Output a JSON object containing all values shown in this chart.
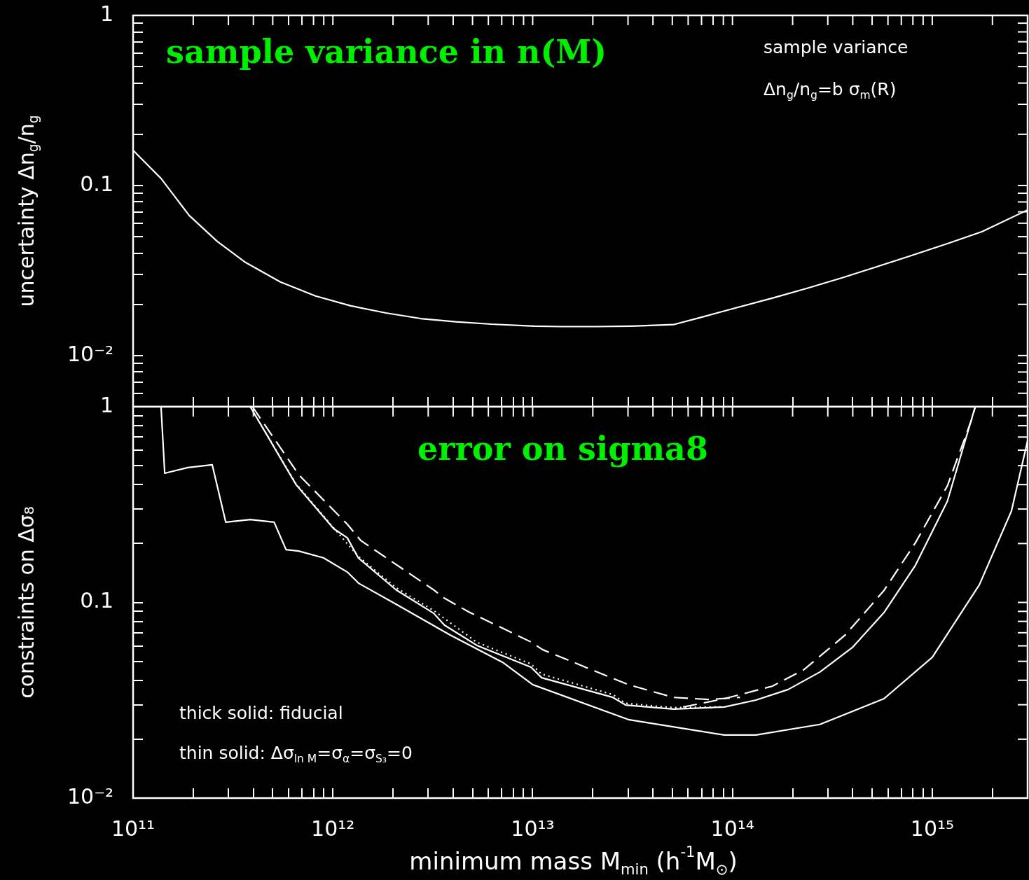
{
  "chart_data": [
    {
      "type": "line",
      "title": "sample variance in n(M)",
      "ylabel": "uncertainty Δn$_{g}$/n$_{g}$",
      "log": "xy",
      "grid": false,
      "legend": false,
      "marker": "none",
      "tick_labels": "y",
      "annotations": [
        "sample variance",
        "Δn$_{g}$/n$_{g}$=b σ$_{m}$(R)"
      ],
      "xlim": [
        100000000000.0,
        3000000000000000.0
      ],
      "ylim": [
        0.005,
        1
      ],
      "xticks": [
        {
          "value": 100000000000.0,
          "label": null
        },
        {
          "value": 200000000000.0,
          "label": null
        },
        {
          "value": 300000000000.0,
          "label": null
        },
        {
          "value": 400000000000.0,
          "label": null
        },
        {
          "value": 500000000000.0,
          "label": null
        },
        {
          "value": 600000000000.0,
          "label": null
        },
        {
          "value": 700000000000.0,
          "label": null
        },
        {
          "value": 800000000000.0,
          "label": null
        },
        {
          "value": 900000000000.0,
          "label": null
        },
        {
          "value": 1000000000000.0,
          "label": null
        },
        {
          "value": 2000000000000.0,
          "label": null
        },
        {
          "value": 3000000000000.0,
          "label": null
        },
        {
          "value": 4000000000000.0,
          "label": null
        },
        {
          "value": 5000000000000.0,
          "label": null
        },
        {
          "value": 6000000000000.0,
          "label": null
        },
        {
          "value": 7000000000000.0,
          "label": null
        },
        {
          "value": 8000000000000.0,
          "label": null
        },
        {
          "value": 9000000000000.0,
          "label": null
        },
        {
          "value": 10000000000000.0,
          "label": null
        },
        {
          "value": 20000000000000.0,
          "label": null
        },
        {
          "value": 30000000000000.0,
          "label": null
        },
        {
          "value": 40000000000000.0,
          "label": null
        },
        {
          "value": 50000000000000.0,
          "label": null
        },
        {
          "value": 60000000000000.0,
          "label": null
        },
        {
          "value": 70000000000000.0,
          "label": null
        },
        {
          "value": 80000000000000.0,
          "label": null
        },
        {
          "value": 90000000000000.0,
          "label": null
        },
        {
          "value": 100000000000000.0,
          "label": null
        },
        {
          "value": 200000000000000.0,
          "label": null
        },
        {
          "value": 300000000000000.0,
          "label": null
        },
        {
          "value": 400000000000000.0,
          "label": null
        },
        {
          "value": 500000000000000.0,
          "label": null
        },
        {
          "value": 600000000000000.0,
          "label": null
        },
        {
          "value": 700000000000000.0,
          "label": null
        },
        {
          "value": 800000000000000.0,
          "label": null
        },
        {
          "value": 900000000000000.0,
          "label": null
        },
        {
          "value": 1000000000000000.0,
          "label": null
        },
        {
          "value": 2000000000000000.0,
          "label": null
        }
      ],
      "yticks": [
        {
          "value": 0.006,
          "label": null
        },
        {
          "value": 0.007,
          "label": null
        },
        {
          "value": 0.008,
          "label": null
        },
        {
          "value": 0.009,
          "label": null
        },
        {
          "value": 0.01,
          "label": "10⁻²"
        },
        {
          "value": 0.02,
          "label": null
        },
        {
          "value": 0.03,
          "label": null
        },
        {
          "value": 0.04,
          "label": null
        },
        {
          "value": 0.05,
          "label": null
        },
        {
          "value": 0.06,
          "label": null
        },
        {
          "value": 0.07,
          "label": null
        },
        {
          "value": 0.08,
          "label": null
        },
        {
          "value": 0.09,
          "label": null
        },
        {
          "value": 0.1,
          "label": "0.1"
        },
        {
          "value": 0.2,
          "label": null
        },
        {
          "value": 0.3,
          "label": null
        },
        {
          "value": 0.4,
          "label": null
        },
        {
          "value": 0.5,
          "label": null
        },
        {
          "value": 0.6,
          "label": null
        },
        {
          "value": 0.7,
          "label": null
        },
        {
          "value": 0.8,
          "label": null
        },
        {
          "value": 0.9,
          "label": null
        },
        {
          "value": 1,
          "label": "1"
        }
      ],
      "series": [
        {
          "color": "#ffffff",
          "line_style": "solid",
          "x": [
            100000000000.0,
            138000000000.0,
            191000000000.0,
            264000000000.0,
            365000000000.0,
            546000000000.0,
            818000000000.0,
            1230000000000.0,
            1840000000000.0,
            2750000000000.0,
            4120000000000.0,
            6180000000000.0,
            10200000000000.0,
            13900000000000.0,
            20800000000000.0,
            31100000000000.0,
            50600000000000.0,
            70000000000000.0,
            101000000000000.0,
            157000000000000.0,
            235000000000000.0,
            352000000000000.0,
            528000000000000.0,
            791000000000000.0,
            1190000000000000.0,
            1770000000000000.0,
            3000000000000000.0
          ],
          "values": [
            0.161,
            0.11,
            0.0666,
            0.0469,
            0.0353,
            0.0271,
            0.0224,
            0.0196,
            0.0178,
            0.0165,
            0.0158,
            0.0153,
            0.0149,
            0.0148,
            0.0148,
            0.0149,
            0.0152,
            0.0168,
            0.0189,
            0.0217,
            0.0248,
            0.0286,
            0.0333,
            0.0388,
            0.0455,
            0.0535,
            0.0718
          ]
        }
      ]
    },
    {
      "type": "line",
      "title": "error on sigma8",
      "xlabel": "minimum mass M$_{min}$ (h$^{-1}$M$_{⊙}$)",
      "ylabel": "constraints on Δσ₈",
      "log": "xy",
      "grid": false,
      "legend": false,
      "marker": "none",
      "annotations": [
        "thick solid: fiducial",
        "thin solid: Δσ$_{ln M}$=σ$_{α}$=σ$_{S₃}$=0"
      ],
      "xlim": [
        100000000000.0,
        3000000000000000.0
      ],
      "ylim": [
        0.01,
        1
      ],
      "xticks": [
        {
          "value": 100000000000.0,
          "label": "10¹¹"
        },
        {
          "value": 200000000000.0,
          "label": null
        },
        {
          "value": 300000000000.0,
          "label": null
        },
        {
          "value": 400000000000.0,
          "label": null
        },
        {
          "value": 500000000000.0,
          "label": null
        },
        {
          "value": 600000000000.0,
          "label": null
        },
        {
          "value": 700000000000.0,
          "label": null
        },
        {
          "value": 800000000000.0,
          "label": null
        },
        {
          "value": 900000000000.0,
          "label": null
        },
        {
          "value": 1000000000000.0,
          "label": "10¹²"
        },
        {
          "value": 2000000000000.0,
          "label": null
        },
        {
          "value": 3000000000000.0,
          "label": null
        },
        {
          "value": 4000000000000.0,
          "label": null
        },
        {
          "value": 5000000000000.0,
          "label": null
        },
        {
          "value": 6000000000000.0,
          "label": null
        },
        {
          "value": 7000000000000.0,
          "label": null
        },
        {
          "value": 8000000000000.0,
          "label": null
        },
        {
          "value": 9000000000000.0,
          "label": null
        },
        {
          "value": 10000000000000.0,
          "label": "10¹³"
        },
        {
          "value": 20000000000000.0,
          "label": null
        },
        {
          "value": 30000000000000.0,
          "label": null
        },
        {
          "value": 40000000000000.0,
          "label": null
        },
        {
          "value": 50000000000000.0,
          "label": null
        },
        {
          "value": 60000000000000.0,
          "label": null
        },
        {
          "value": 70000000000000.0,
          "label": null
        },
        {
          "value": 80000000000000.0,
          "label": null
        },
        {
          "value": 90000000000000.0,
          "label": null
        },
        {
          "value": 100000000000000.0,
          "label": "10¹⁴"
        },
        {
          "value": 200000000000000.0,
          "label": null
        },
        {
          "value": 300000000000000.0,
          "label": null
        },
        {
          "value": 400000000000000.0,
          "label": null
        },
        {
          "value": 500000000000000.0,
          "label": null
        },
        {
          "value": 600000000000000.0,
          "label": null
        },
        {
          "value": 700000000000000.0,
          "label": null
        },
        {
          "value": 800000000000000.0,
          "label": null
        },
        {
          "value": 900000000000000.0,
          "label": null
        },
        {
          "value": 1000000000000000.0,
          "label": "10¹⁵"
        },
        {
          "value": 2000000000000000.0,
          "label": null
        }
      ],
      "yticks": [
        {
          "value": 0.01,
          "label": "10⁻²"
        },
        {
          "value": 0.02,
          "label": null
        },
        {
          "value": 0.03,
          "label": null
        },
        {
          "value": 0.04,
          "label": null
        },
        {
          "value": 0.05,
          "label": null
        },
        {
          "value": 0.06,
          "label": null
        },
        {
          "value": 0.07,
          "label": null
        },
        {
          "value": 0.08,
          "label": null
        },
        {
          "value": 0.09,
          "label": null
        },
        {
          "value": 0.1,
          "label": "0.1"
        },
        {
          "value": 0.2,
          "label": null
        },
        {
          "value": 0.3,
          "label": null
        },
        {
          "value": 0.4,
          "label": null
        },
        {
          "value": 0.5,
          "label": null
        },
        {
          "value": 0.6,
          "label": null
        },
        {
          "value": 0.7,
          "label": null
        },
        {
          "value": 0.8,
          "label": null
        },
        {
          "value": 0.9,
          "label": null
        },
        {
          "value": 1,
          "label": "1"
        }
      ],
      "series": [
        {
          "color": "#ffffff",
          "line_style": "solid",
          "x": [
            138000000000.0,
            144000000000.0,
            188000000000.0,
            249000000000.0,
            291000000000.0,
            386000000000.0,
            508000000000.0,
            583000000000.0,
            674000000000.0,
            896000000000.0,
            1180000000000.0,
            1350000000000.0,
            2070000000000.0,
            3860000000000.0,
            7140000000000.0,
            10000000000000.0,
            30100000000000.0,
            91000000000000.0,
            131000000000000.0,
            274000000000000.0,
            573000000000000.0,
            1000000000000000.0,
            1720000000000000.0,
            2490000000000000.0,
            3000000000000000.0
          ],
          "values": [
            1,
            0.457,
            0.489,
            0.505,
            0.257,
            0.265,
            0.257,
            0.186,
            0.183,
            0.169,
            0.143,
            0.125,
            0.098,
            0.0682,
            0.0491,
            0.038,
            0.0252,
            0.021,
            0.021,
            0.0238,
            0.0322,
            0.0524,
            0.123,
            0.293,
            0.67
          ]
        },
        {
          "color": "#ffffff",
          "line_style": "solid",
          "x": [
            386000000000.0,
            653000000000.0,
            1010000000000.0,
            1180000000000.0,
            1340000000000.0,
            2070000000000.0,
            3190000000000.0,
            3620000000000.0,
            5260000000000.0,
            9800000000000.0,
            11100000000000.0,
            25200000000000.0,
            29200000000000.0,
            50600000000000.0,
            91000000000000.0,
            131000000000000.0,
            190000000000000.0,
            274000000000000.0,
            398000000000000.0,
            573000000000000.0,
            824000000000000.0,
            1190000000000000.0,
            1640000000000000.0
          ],
          "values": [
            1,
            0.401,
            0.238,
            0.214,
            0.169,
            0.116,
            0.0881,
            0.0765,
            0.0603,
            0.0467,
            0.0412,
            0.0327,
            0.0299,
            0.0285,
            0.0292,
            0.0317,
            0.0359,
            0.0441,
            0.0588,
            0.0887,
            0.155,
            0.329,
            1
          ]
        },
        {
          "color": "#ffffff",
          "line_style": "dotted",
          "x": [
            386000000000.0,
            653000000000.0,
            1010000000000.0,
            1340000000000.0,
            2070000000000.0,
            3190000000000.0,
            5260000000000.0,
            9800000000000.0,
            11100000000000.0,
            25200000000000.0,
            29200000000000.0,
            50600000000000.0,
            91000000000000.0
          ],
          "values": [
            1,
            0.405,
            0.24,
            0.172,
            0.119,
            0.091,
            0.0625,
            0.0485,
            0.043,
            0.0338,
            0.0305,
            0.029,
            0.0293
          ]
        },
        {
          "color": "#ffffff",
          "line_style": "dashed",
          "x": [
            396000000000.0,
            674000000000.0,
            1180000000000.0,
            1380000000000.0,
            3190000000000.0,
            3620000000000.0,
            4780000000000.0,
            9800000000000.0,
            11200000000000.0,
            25200000000000.0,
            30100000000000.0,
            50600000000000.0,
            75900000000000.0,
            109000000000000.0
          ],
          "values": [
            1,
            0.45,
            0.251,
            0.207,
            0.116,
            0.105,
            0.0895,
            0.0628,
            0.0574,
            0.0409,
            0.038,
            0.0327,
            0.0319,
            0.0327
          ]
        },
        {
          "color": "#ffffff",
          "line_style": "dashed",
          "x": [
            56600000000000.0,
            91000000000000.0,
            158000000000000.0,
            227000000000000.0,
            367000000000000.0,
            573000000000000.0,
            824000000000000.0,
            1190000000000000.0,
            1600000000000000.0,
            1640000000000000.0
          ],
          "values": [
            0.0292,
            0.0322,
            0.0373,
            0.0452,
            0.0682,
            0.115,
            0.202,
            0.394,
            0.9,
            1
          ]
        }
      ]
    }
  ]
}
